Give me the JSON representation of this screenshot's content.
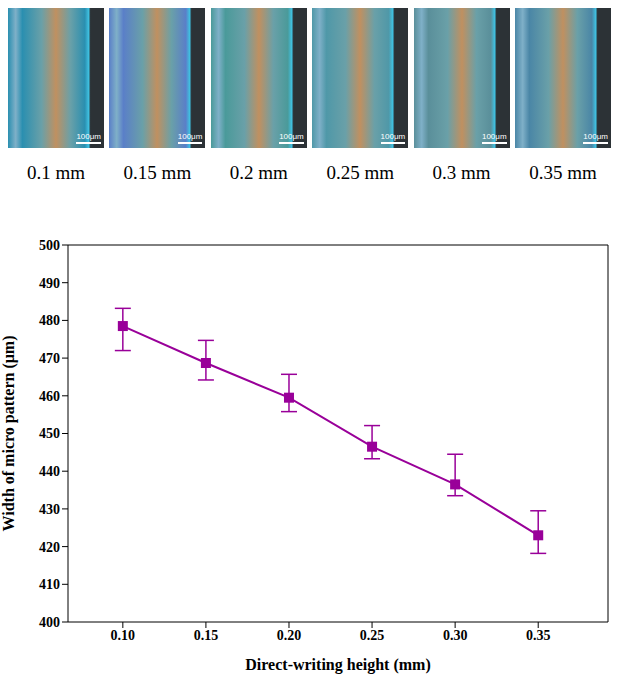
{
  "images": {
    "labels": [
      "0.1 mm",
      "0.15 mm",
      "0.2 mm",
      "0.25 mm",
      "0.3 mm",
      "0.35 mm"
    ],
    "scale_bar": "100μm"
  },
  "chart_data": {
    "type": "line",
    "x_label": "Direct-writing height (mm)",
    "y_label": "Width of micro pattern (μm)",
    "x": [
      0.1,
      0.15,
      0.2,
      0.25,
      0.3,
      0.35
    ],
    "values": [
      478.5,
      468.7,
      459.5,
      446.5,
      436.5,
      423.0
    ],
    "errors": [
      [
        6.5,
        4.7
      ],
      [
        4.5,
        6.0
      ],
      [
        3.7,
        6.2
      ],
      [
        3.2,
        5.6
      ],
      [
        3.0,
        8.0
      ],
      [
        4.8,
        6.5
      ]
    ],
    "color": "#990099",
    "marker": "square",
    "line_style": "solid",
    "xlim": [
      0.067,
      0.392
    ],
    "xticks": [
      {
        "value": 0.1,
        "label": "0.10"
      },
      0.15,
      {
        "value": 0.2,
        "label": "0.20"
      },
      0.25,
      {
        "value": 0.3,
        "label": "0.30"
      },
      0.35
    ],
    "ylim": [
      400,
      500
    ],
    "yticks": [
      400,
      410,
      420,
      430,
      440,
      450,
      460,
      470,
      480,
      490,
      500
    ],
    "grid": false
  }
}
